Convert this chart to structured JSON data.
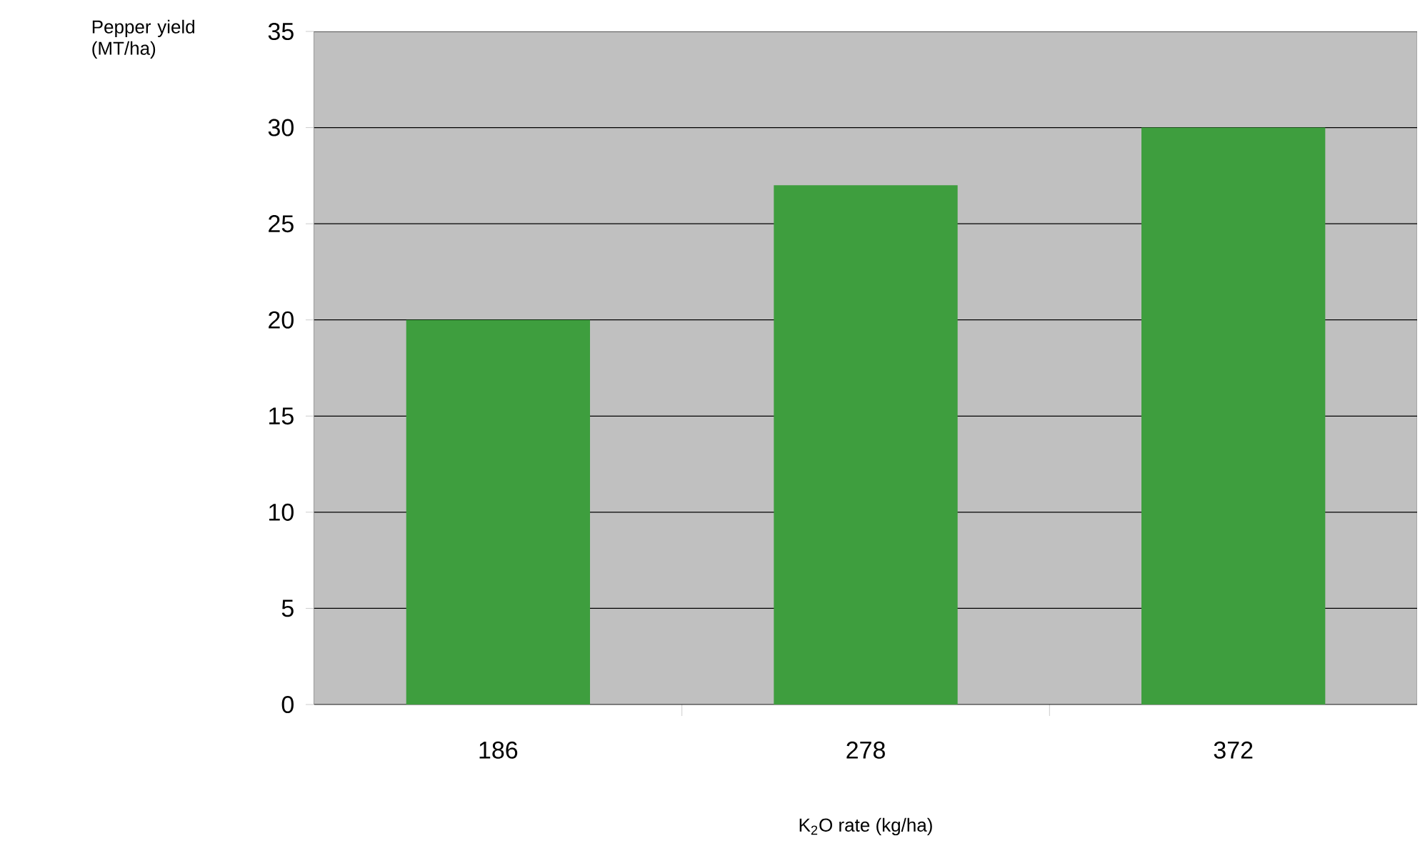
{
  "chart_data": {
    "type": "bar",
    "xlabel": "K$_{2}$O rate (kg/ha)",
    "ylabel": "Pepper yield (MT/ha)",
    "categories": [
      "186",
      "278",
      "372"
    ],
    "values": [
      20,
      27,
      30
    ],
    "color": "#3e9e3e",
    "ylim": [
      0,
      35
    ],
    "yticks": [
      0,
      5,
      10,
      15,
      20,
      25,
      30,
      35
    ],
    "grid": "y"
  }
}
